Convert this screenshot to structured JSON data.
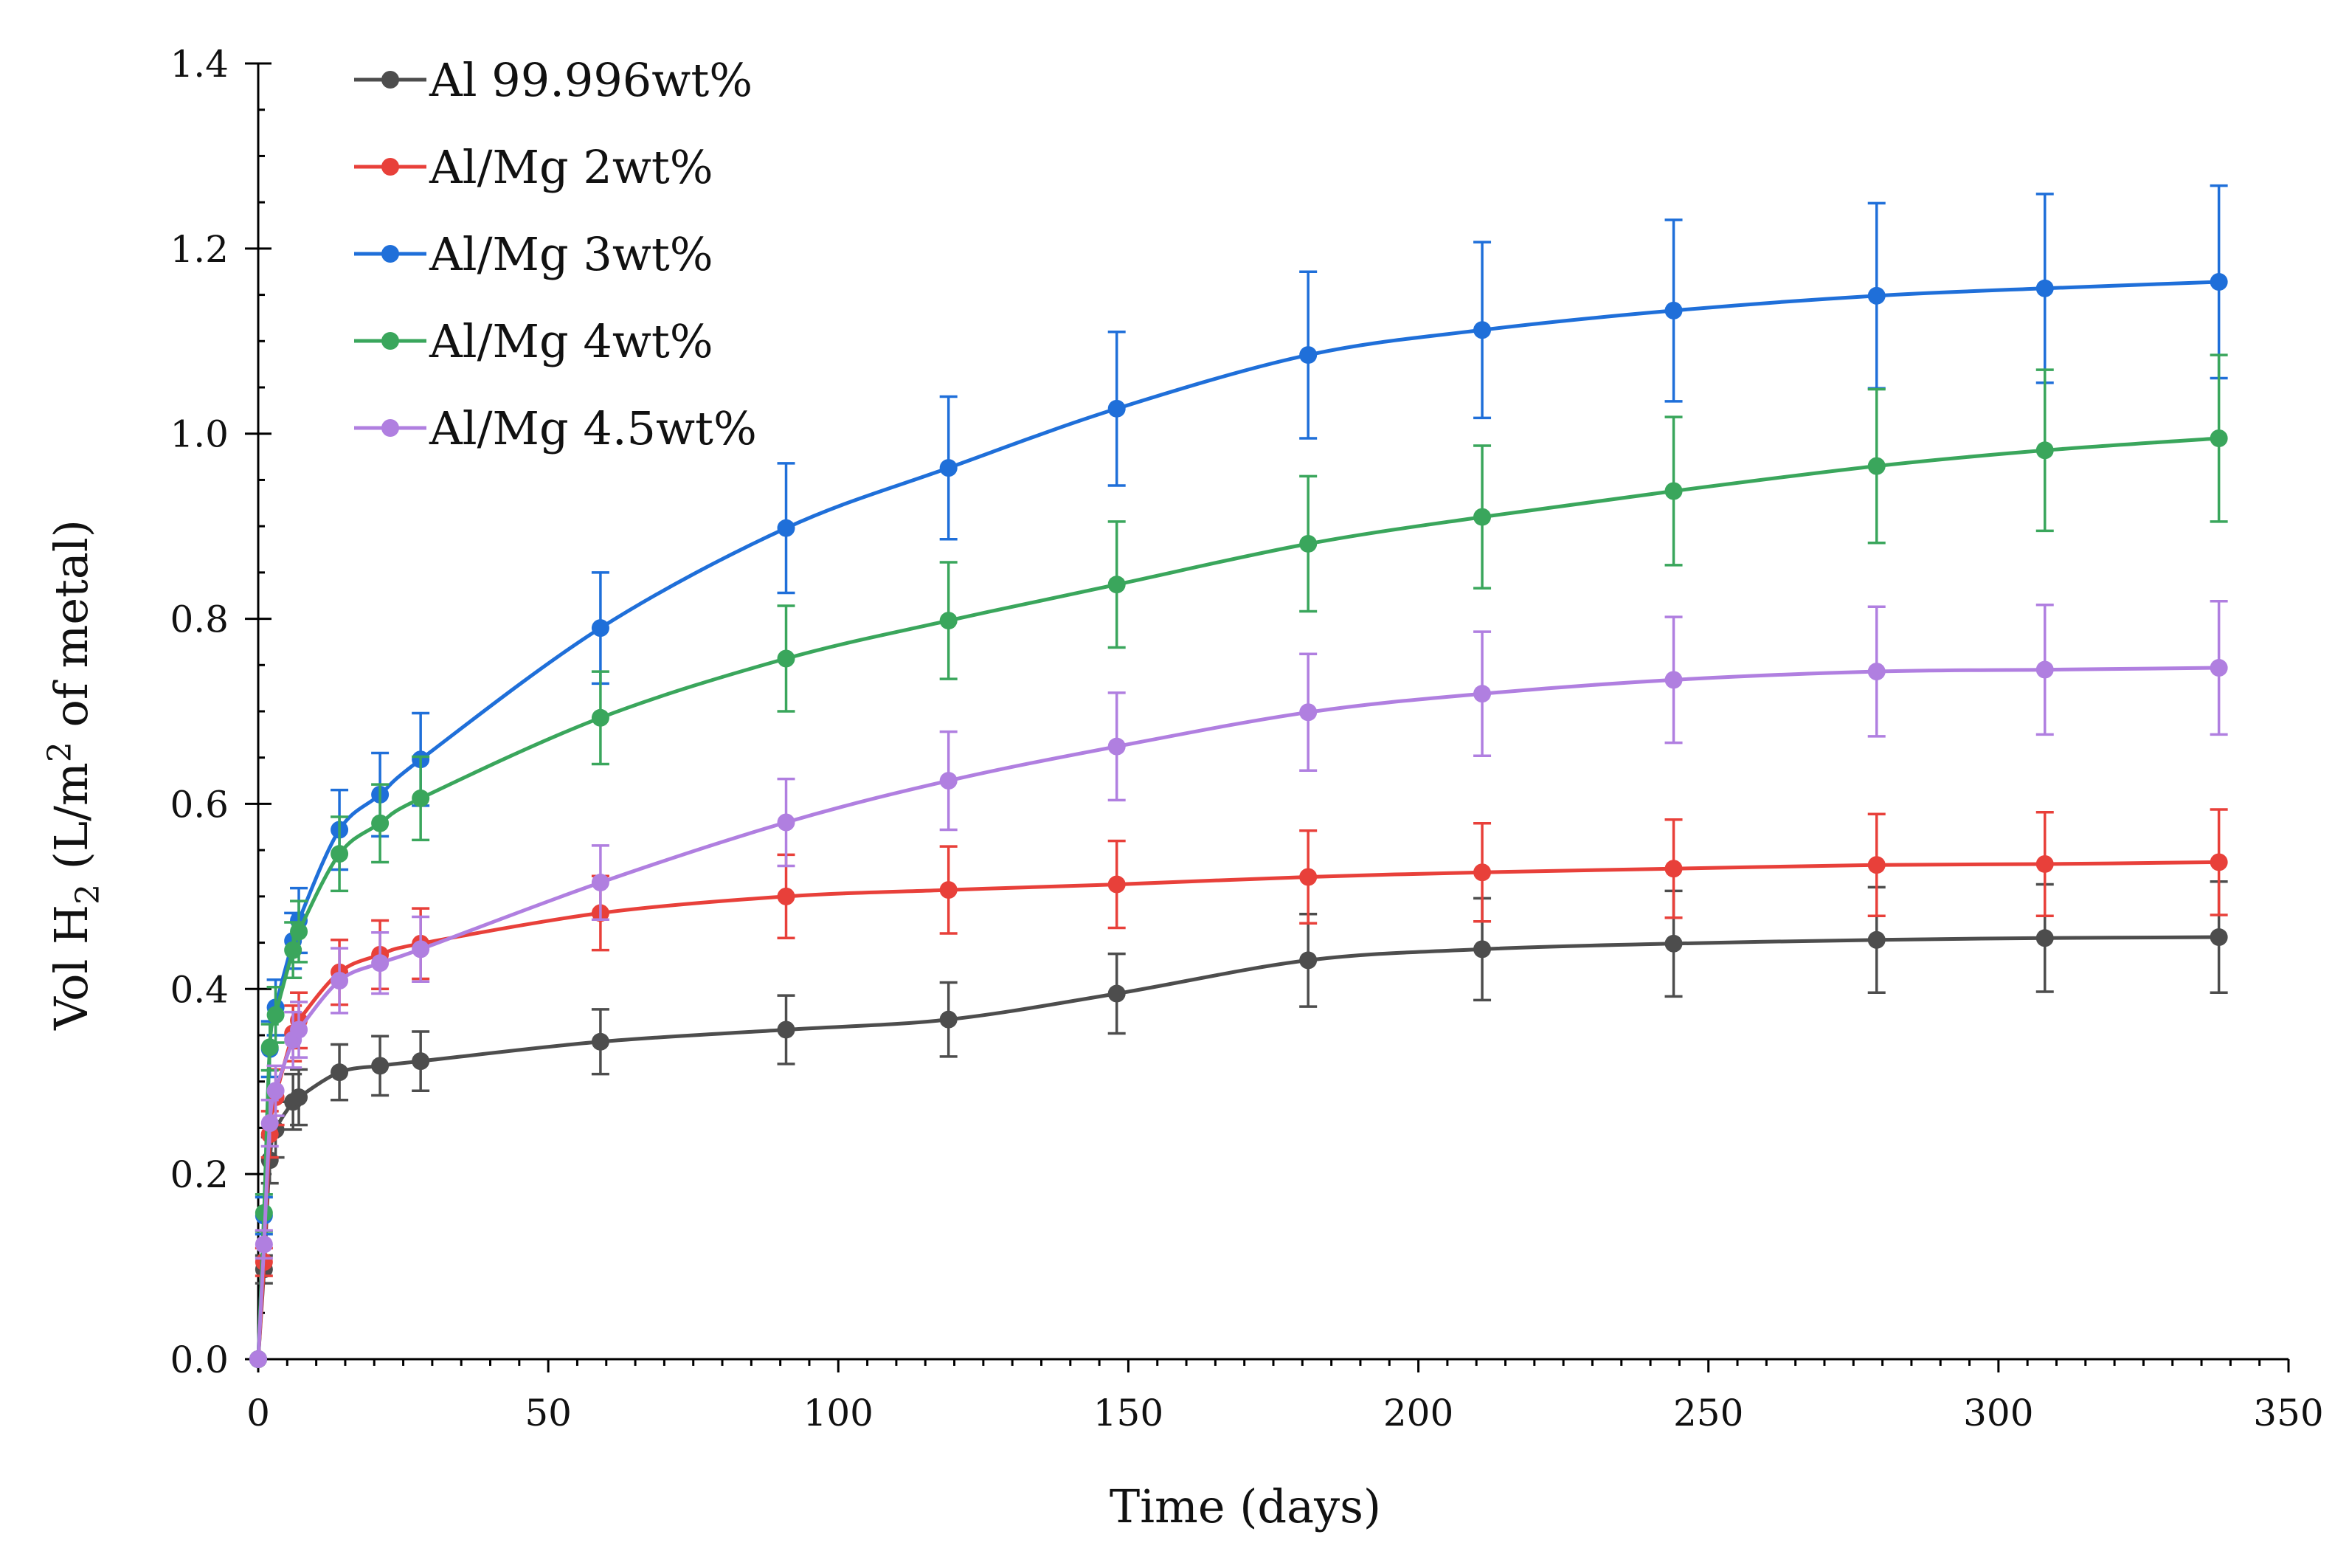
{
  "chart_data": {
    "type": "line",
    "title": "",
    "xlabel": "Time (days)",
    "ylabel": {
      "prefix": "Vol H",
      "sub": "2",
      "middle": " (L/m",
      "sup": "2",
      "suffix": " of metal)"
    },
    "xlim": [
      0,
      350
    ],
    "ylim": [
      0,
      1.4
    ],
    "x_ticks": [
      0,
      50,
      100,
      150,
      200,
      250,
      300,
      350
    ],
    "x_tick_labels": [
      "0",
      "50",
      "100",
      "150",
      "200",
      "250",
      "300",
      "350"
    ],
    "y_ticks": [
      0,
      0.2,
      0.4,
      0.6,
      0.8,
      1.0,
      1.2,
      1.4
    ],
    "y_tick_labels": [
      "0.0",
      "0.2",
      "0.4",
      "0.6",
      "0.8",
      "1.0",
      "1.2",
      "1.4"
    ],
    "x_minor_step": 5,
    "grid": false,
    "legend_position": "top-left",
    "x": [
      0,
      1,
      2,
      3,
      6,
      7,
      14,
      21,
      28,
      59,
      91,
      119,
      148,
      181,
      211,
      244,
      279,
      308,
      338
    ],
    "series": [
      {
        "name": "Al 99.996wt%",
        "color": "#4d4d4d",
        "values": [
          0,
          0.097,
          0.215,
          0.248,
          0.278,
          0.283,
          0.31,
          0.317,
          0.322,
          0.343,
          0.356,
          0.367,
          0.395,
          0.431,
          0.443,
          0.449,
          0.453,
          0.455,
          0.456
        ],
        "errors": [
          0,
          0.015,
          0.025,
          0.03,
          0.03,
          0.03,
          0.03,
          0.032,
          0.032,
          0.035,
          0.037,
          0.04,
          0.043,
          0.05,
          0.055,
          0.057,
          0.057,
          0.058,
          0.06
        ]
      },
      {
        "name": "Al/Mg 2wt%",
        "color": "#e8403a",
        "values": [
          0,
          0.105,
          0.243,
          0.283,
          0.352,
          0.366,
          0.418,
          0.437,
          0.449,
          0.482,
          0.5,
          0.507,
          0.513,
          0.521,
          0.526,
          0.53,
          0.534,
          0.535,
          0.537
        ],
        "errors": [
          0,
          0.015,
          0.025,
          0.03,
          0.03,
          0.03,
          0.035,
          0.037,
          0.038,
          0.04,
          0.045,
          0.047,
          0.047,
          0.05,
          0.053,
          0.053,
          0.055,
          0.056,
          0.057
        ]
      },
      {
        "name": "Al/Mg 3wt%",
        "color": "#1f6fd9",
        "values": [
          0,
          0.155,
          0.335,
          0.38,
          0.452,
          0.474,
          0.572,
          0.61,
          0.648,
          0.79,
          0.898,
          0.963,
          1.027,
          1.085,
          1.112,
          1.133,
          1.149,
          1.157,
          1.164
        ],
        "errors": [
          0,
          0.02,
          0.03,
          0.03,
          0.03,
          0.035,
          0.043,
          0.045,
          0.05,
          0.06,
          0.07,
          0.077,
          0.083,
          0.09,
          0.095,
          0.098,
          0.1,
          0.102,
          0.104
        ]
      },
      {
        "name": "Al/Mg 4wt%",
        "color": "#3aa65c",
        "values": [
          0,
          0.158,
          0.337,
          0.372,
          0.442,
          0.462,
          0.546,
          0.579,
          0.606,
          0.693,
          0.757,
          0.798,
          0.837,
          0.881,
          0.91,
          0.938,
          0.965,
          0.982,
          0.995
        ],
        "errors": [
          0,
          0.02,
          0.025,
          0.03,
          0.03,
          0.033,
          0.04,
          0.042,
          0.045,
          0.05,
          0.057,
          0.063,
          0.068,
          0.073,
          0.077,
          0.08,
          0.083,
          0.087,
          0.09
        ]
      },
      {
        "name": "Al/Mg 4.5wt%",
        "color": "#b07fe0",
        "values": [
          0,
          0.124,
          0.255,
          0.29,
          0.345,
          0.356,
          0.409,
          0.428,
          0.443,
          0.515,
          0.58,
          0.625,
          0.662,
          0.699,
          0.719,
          0.734,
          0.743,
          0.745,
          0.747
        ],
        "errors": [
          0,
          0.015,
          0.025,
          0.027,
          0.03,
          0.03,
          0.035,
          0.033,
          0.035,
          0.04,
          0.047,
          0.053,
          0.058,
          0.063,
          0.067,
          0.068,
          0.07,
          0.07,
          0.072
        ]
      }
    ]
  }
}
